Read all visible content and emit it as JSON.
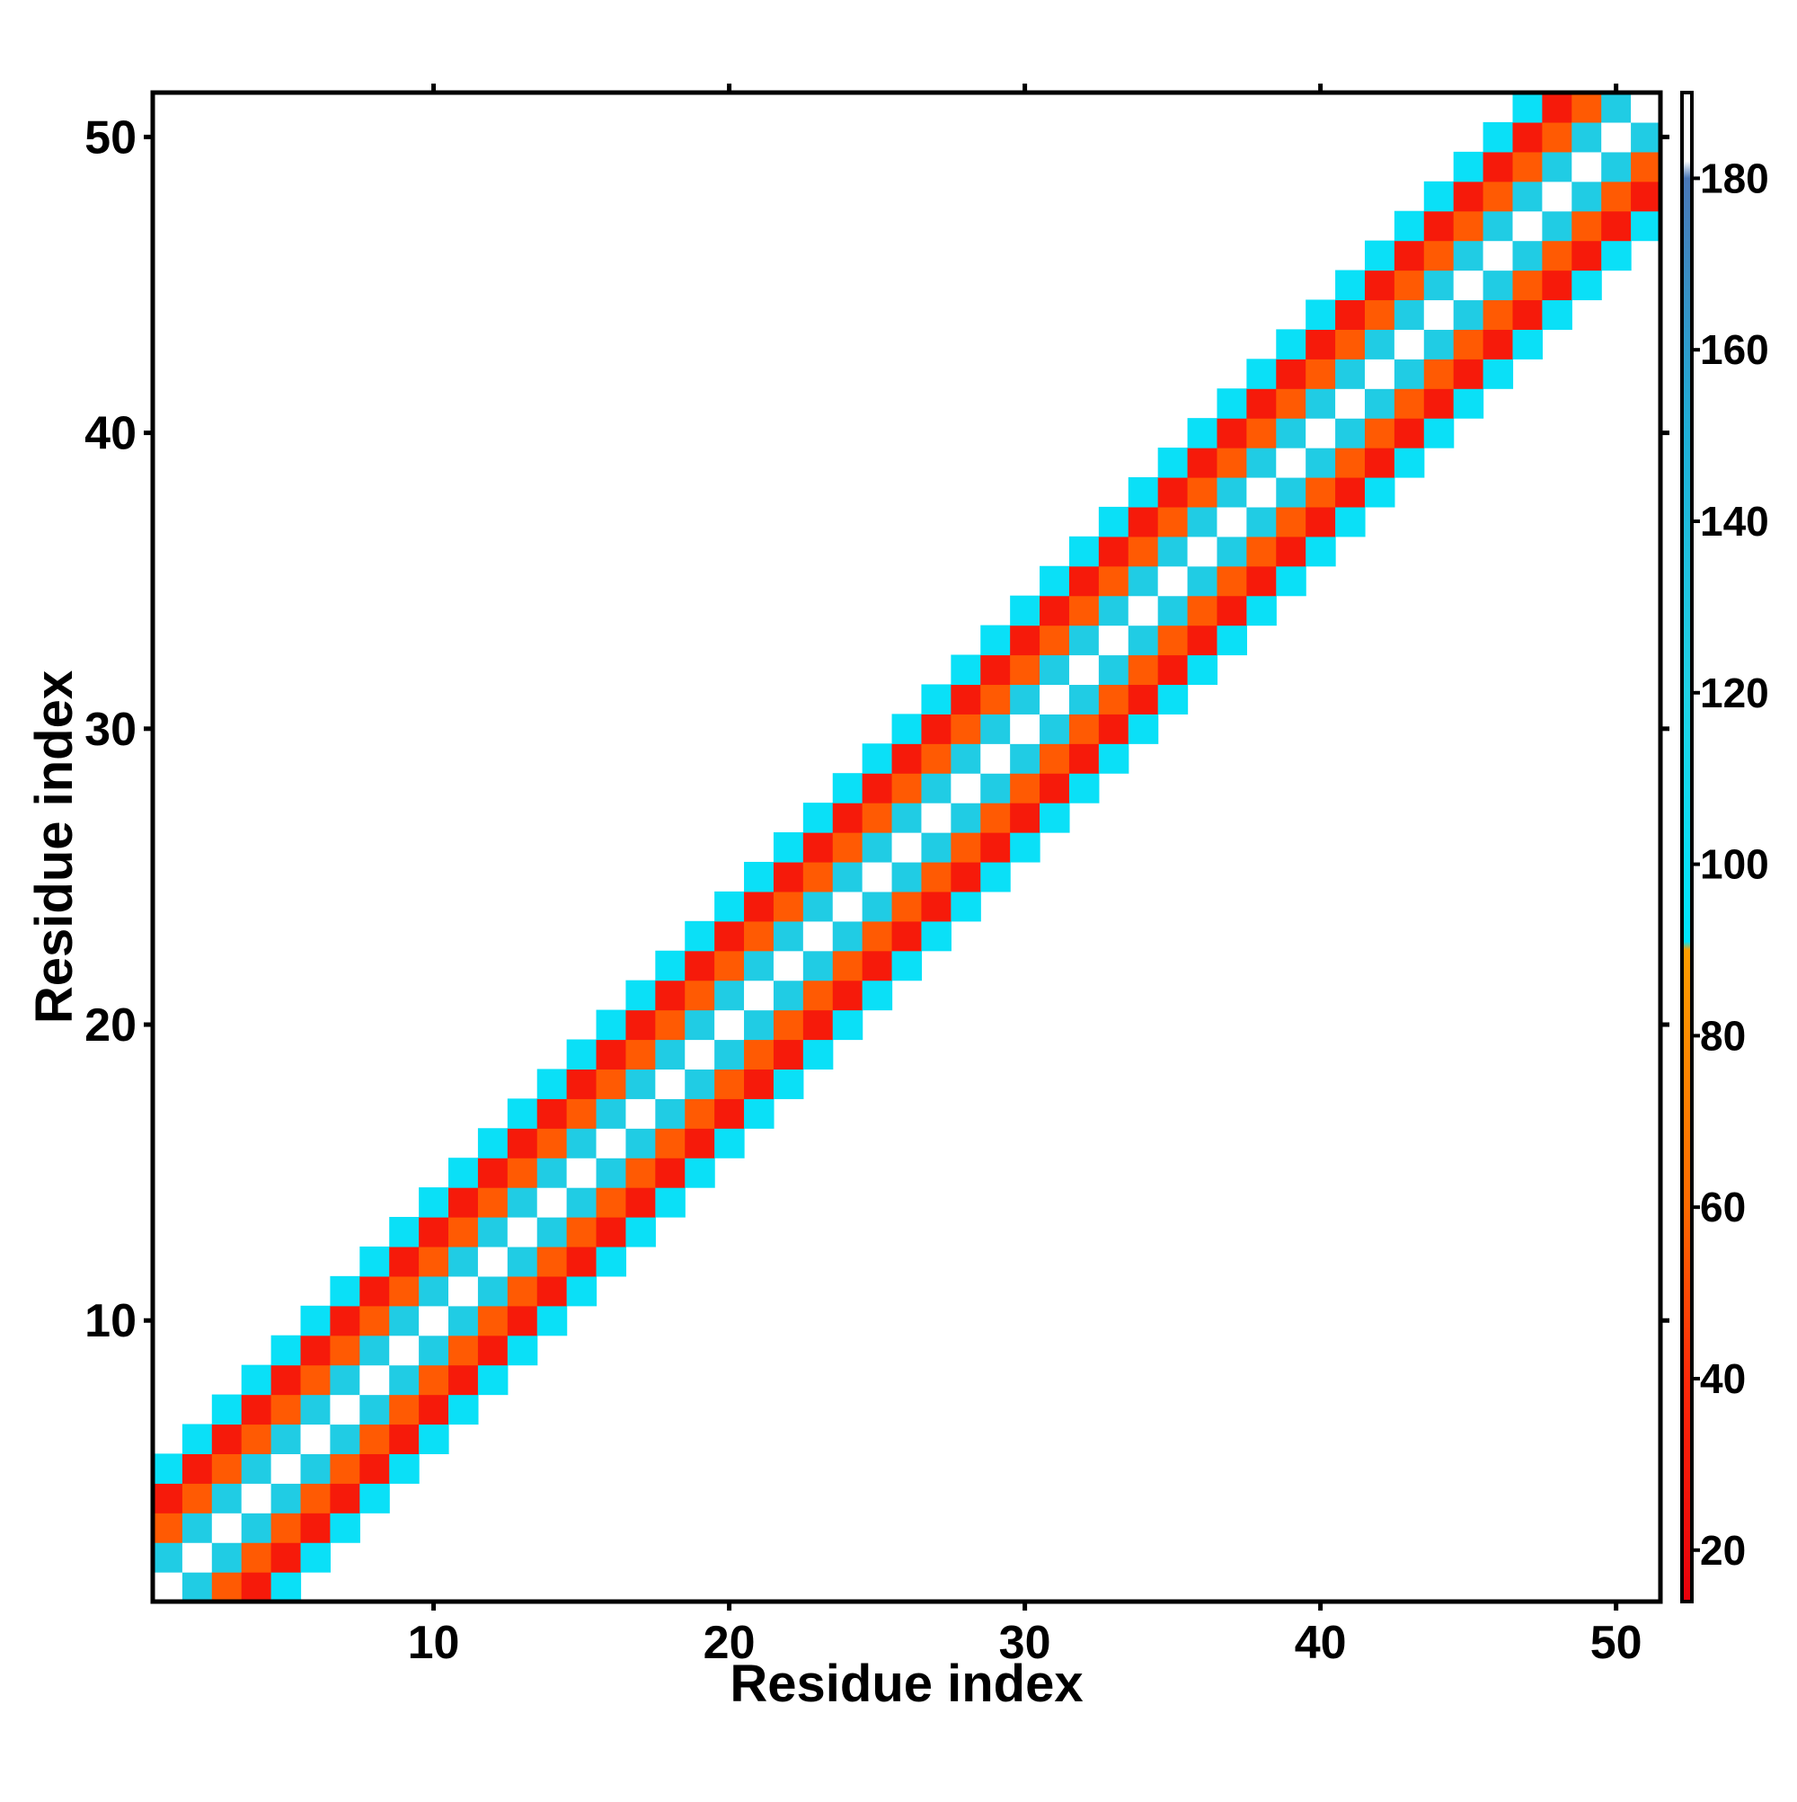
{
  "chart_data": {
    "type": "heatmap",
    "title": "",
    "xlabel": "Residue index",
    "ylabel": "Residue index",
    "xlim": [
      0.5,
      51.5
    ],
    "ylim": [
      0.5,
      51.5
    ],
    "x_ticks": [
      10,
      20,
      30,
      40,
      50
    ],
    "y_ticks": [
      10,
      20,
      30,
      40,
      50
    ],
    "grid": false,
    "legend": "colorbar-right",
    "colorbar": {
      "range": [
        14,
        190
      ],
      "ticks": [
        20,
        40,
        60,
        80,
        100,
        120,
        140,
        160,
        180
      ],
      "stops": [
        {
          "value": 14,
          "color": "#e8000b"
        },
        {
          "value": 40,
          "color": "#ff2a0a"
        },
        {
          "value": 60,
          "color": "#ff6a00"
        },
        {
          "value": 90,
          "color": "#ff9e00"
        },
        {
          "value": 91,
          "color": "#00e6ff"
        },
        {
          "value": 120,
          "color": "#20d2e6"
        },
        {
          "value": 150,
          "color": "#1fb0d8"
        },
        {
          "value": 180,
          "color": "#4a78b8"
        },
        {
          "value": 182,
          "color": "#ffffff"
        },
        {
          "value": 190,
          "color": "#ffffff"
        }
      ]
    },
    "diagonal_value": 190,
    "offset_values": {
      "1": 125,
      "2": 55,
      "3": 30,
      "4": 100
    },
    "notes_cells": []
  },
  "colors": {
    "background": "#ffffff",
    "axis": "#000000"
  }
}
